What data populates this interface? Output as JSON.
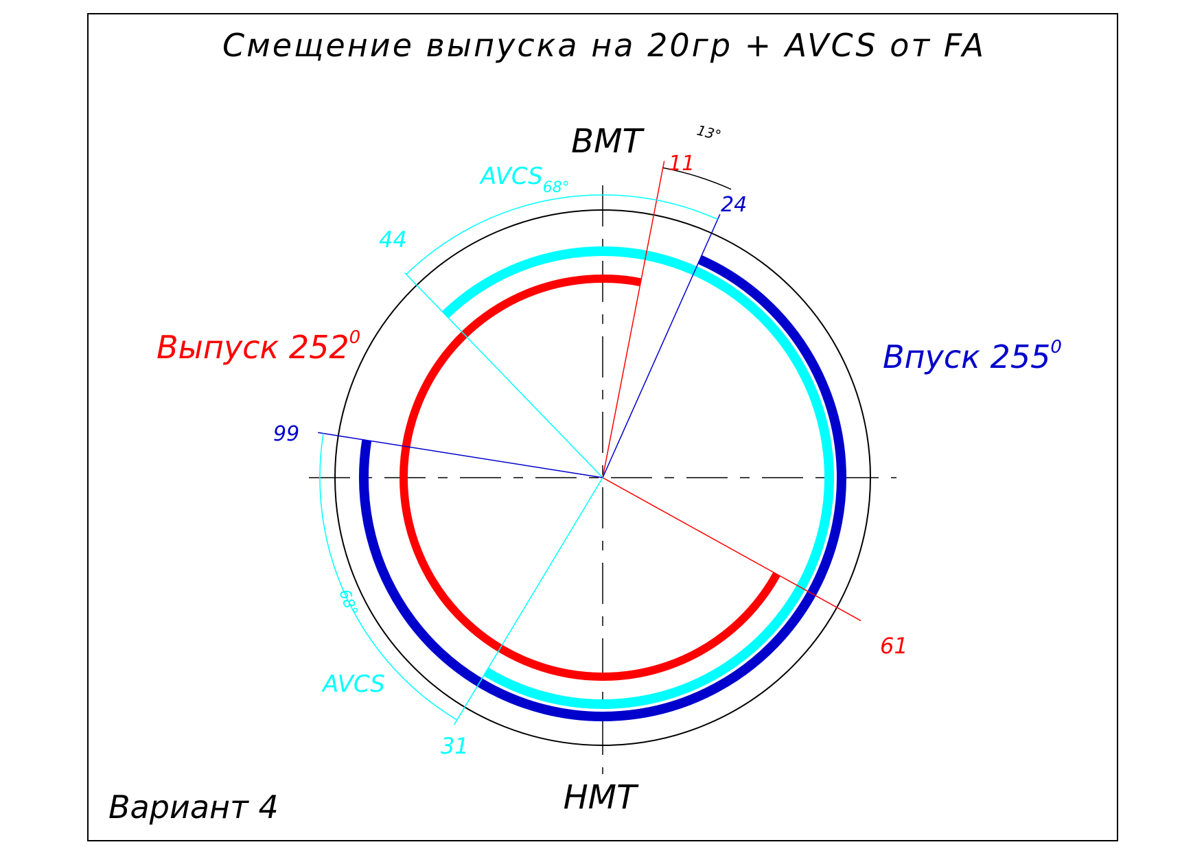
{
  "title": "Смещение выпуска на 20гр + AVCS от FA",
  "variant_label": "Вариант 4",
  "tdc_label": "ВМТ",
  "bdc_label": "НМТ",
  "exhaust": {
    "label": "Выпуск 252",
    "superscript": "0",
    "color": "#ff0000",
    "open_deg_before_bdc": 61,
    "close_deg_after_tdc": 11,
    "open_label": "61",
    "close_label": "11"
  },
  "intake_base": {
    "color": "#0000cc",
    "open_deg_before_tdc": 24,
    "close_deg_after_bdc": 99,
    "open_label": "24",
    "close_label": "99"
  },
  "intake_avcs": {
    "label": "Впуск 255",
    "superscript": "0",
    "color": "#00ffff",
    "open_deg_after_tdc": 44,
    "close_deg_after_bdc": 31,
    "open_label": "44",
    "close_label": "31",
    "avcs_label": "AVCS",
    "avcs_range_label": "68°",
    "avcs_range_label_bottom": "68°"
  },
  "dimension_13": "13°",
  "colors": {
    "outline": "#000000",
    "exhaust": "#ff0000",
    "intake": "#0000cc",
    "avcs": "#00ffff"
  }
}
